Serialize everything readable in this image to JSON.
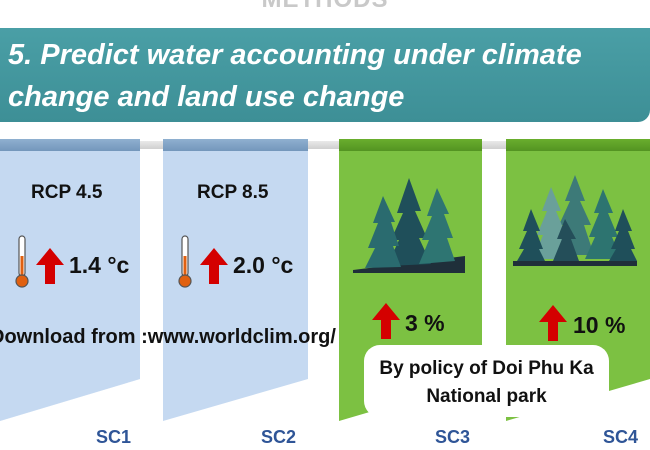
{
  "header": {
    "section_heading": "METHODS"
  },
  "title": {
    "line1": "5. Predict water accounting under climate",
    "line2": "change and land use change"
  },
  "scenarios": [
    {
      "code": "SC1",
      "rcp": "RCP 4.5",
      "temp": "1.4 °c"
    },
    {
      "code": "SC2",
      "rcp": "RCP 8.5",
      "temp": "2.0 °c"
    },
    {
      "code": "SC3",
      "increase": "3 %"
    },
    {
      "code": "SC4",
      "increase": "10 %"
    }
  ],
  "notes": {
    "download": "Download from :www.worldclim.org/",
    "policy_line1": "By policy of Doi Phu Ka",
    "policy_line2": "National park"
  },
  "colors": {
    "teal_banner": "#3d8f96",
    "panel_blue": "#c5d9f1",
    "panel_green": "#7cc142",
    "arrow_red": "#d40000",
    "sc_text": "#2f5597"
  }
}
